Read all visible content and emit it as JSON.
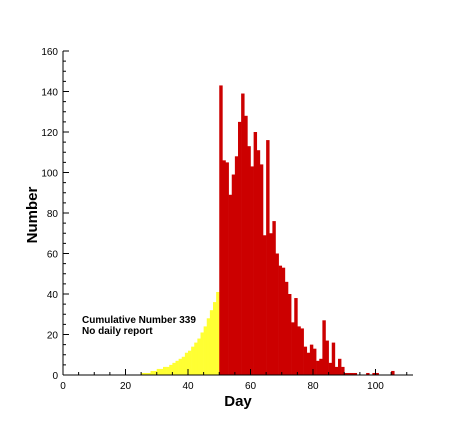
{
  "chart_data": {
    "type": "bar",
    "xlabel": "Day",
    "ylabel": "Number",
    "xlim": [
      0,
      112
    ],
    "ylim": [
      0,
      160
    ],
    "x_ticks": [
      0,
      20,
      40,
      60,
      80,
      100
    ],
    "y_ticks": [
      0,
      20,
      40,
      60,
      80,
      100,
      120,
      140,
      160
    ],
    "grid": false,
    "legend": "none",
    "annotation": {
      "line1": "Cumulative Number 339",
      "line2": "No daily report"
    },
    "series": [
      {
        "fill": "#ffff33",
        "x_start": 0,
        "values": [
          0,
          0,
          0,
          0,
          0,
          0,
          0,
          0,
          0,
          0,
          0,
          0,
          0,
          0,
          0,
          0,
          0,
          0,
          0,
          0,
          0,
          0,
          0,
          0,
          0,
          1,
          1,
          1,
          2,
          2,
          3,
          3,
          4,
          4,
          5,
          6,
          7,
          8,
          9,
          11,
          12,
          14,
          16,
          18,
          21,
          24,
          28,
          32,
          36,
          41
        ]
      },
      {
        "fill": "#cc0000",
        "x_start": 50,
        "values": [
          143,
          106,
          105,
          89,
          99,
          108,
          125,
          139,
          128,
          113,
          103,
          120,
          111,
          104,
          69,
          116,
          70,
          76,
          60,
          54,
          53,
          46,
          40,
          26,
          38,
          24,
          23,
          14,
          11,
          15,
          13,
          7,
          8,
          27,
          17,
          6,
          16,
          4,
          8,
          4,
          1,
          1,
          1,
          1,
          0,
          0,
          0,
          1,
          0,
          1,
          1,
          0,
          0,
          0,
          0,
          2,
          0,
          0,
          0,
          0,
          0
        ]
      }
    ]
  }
}
